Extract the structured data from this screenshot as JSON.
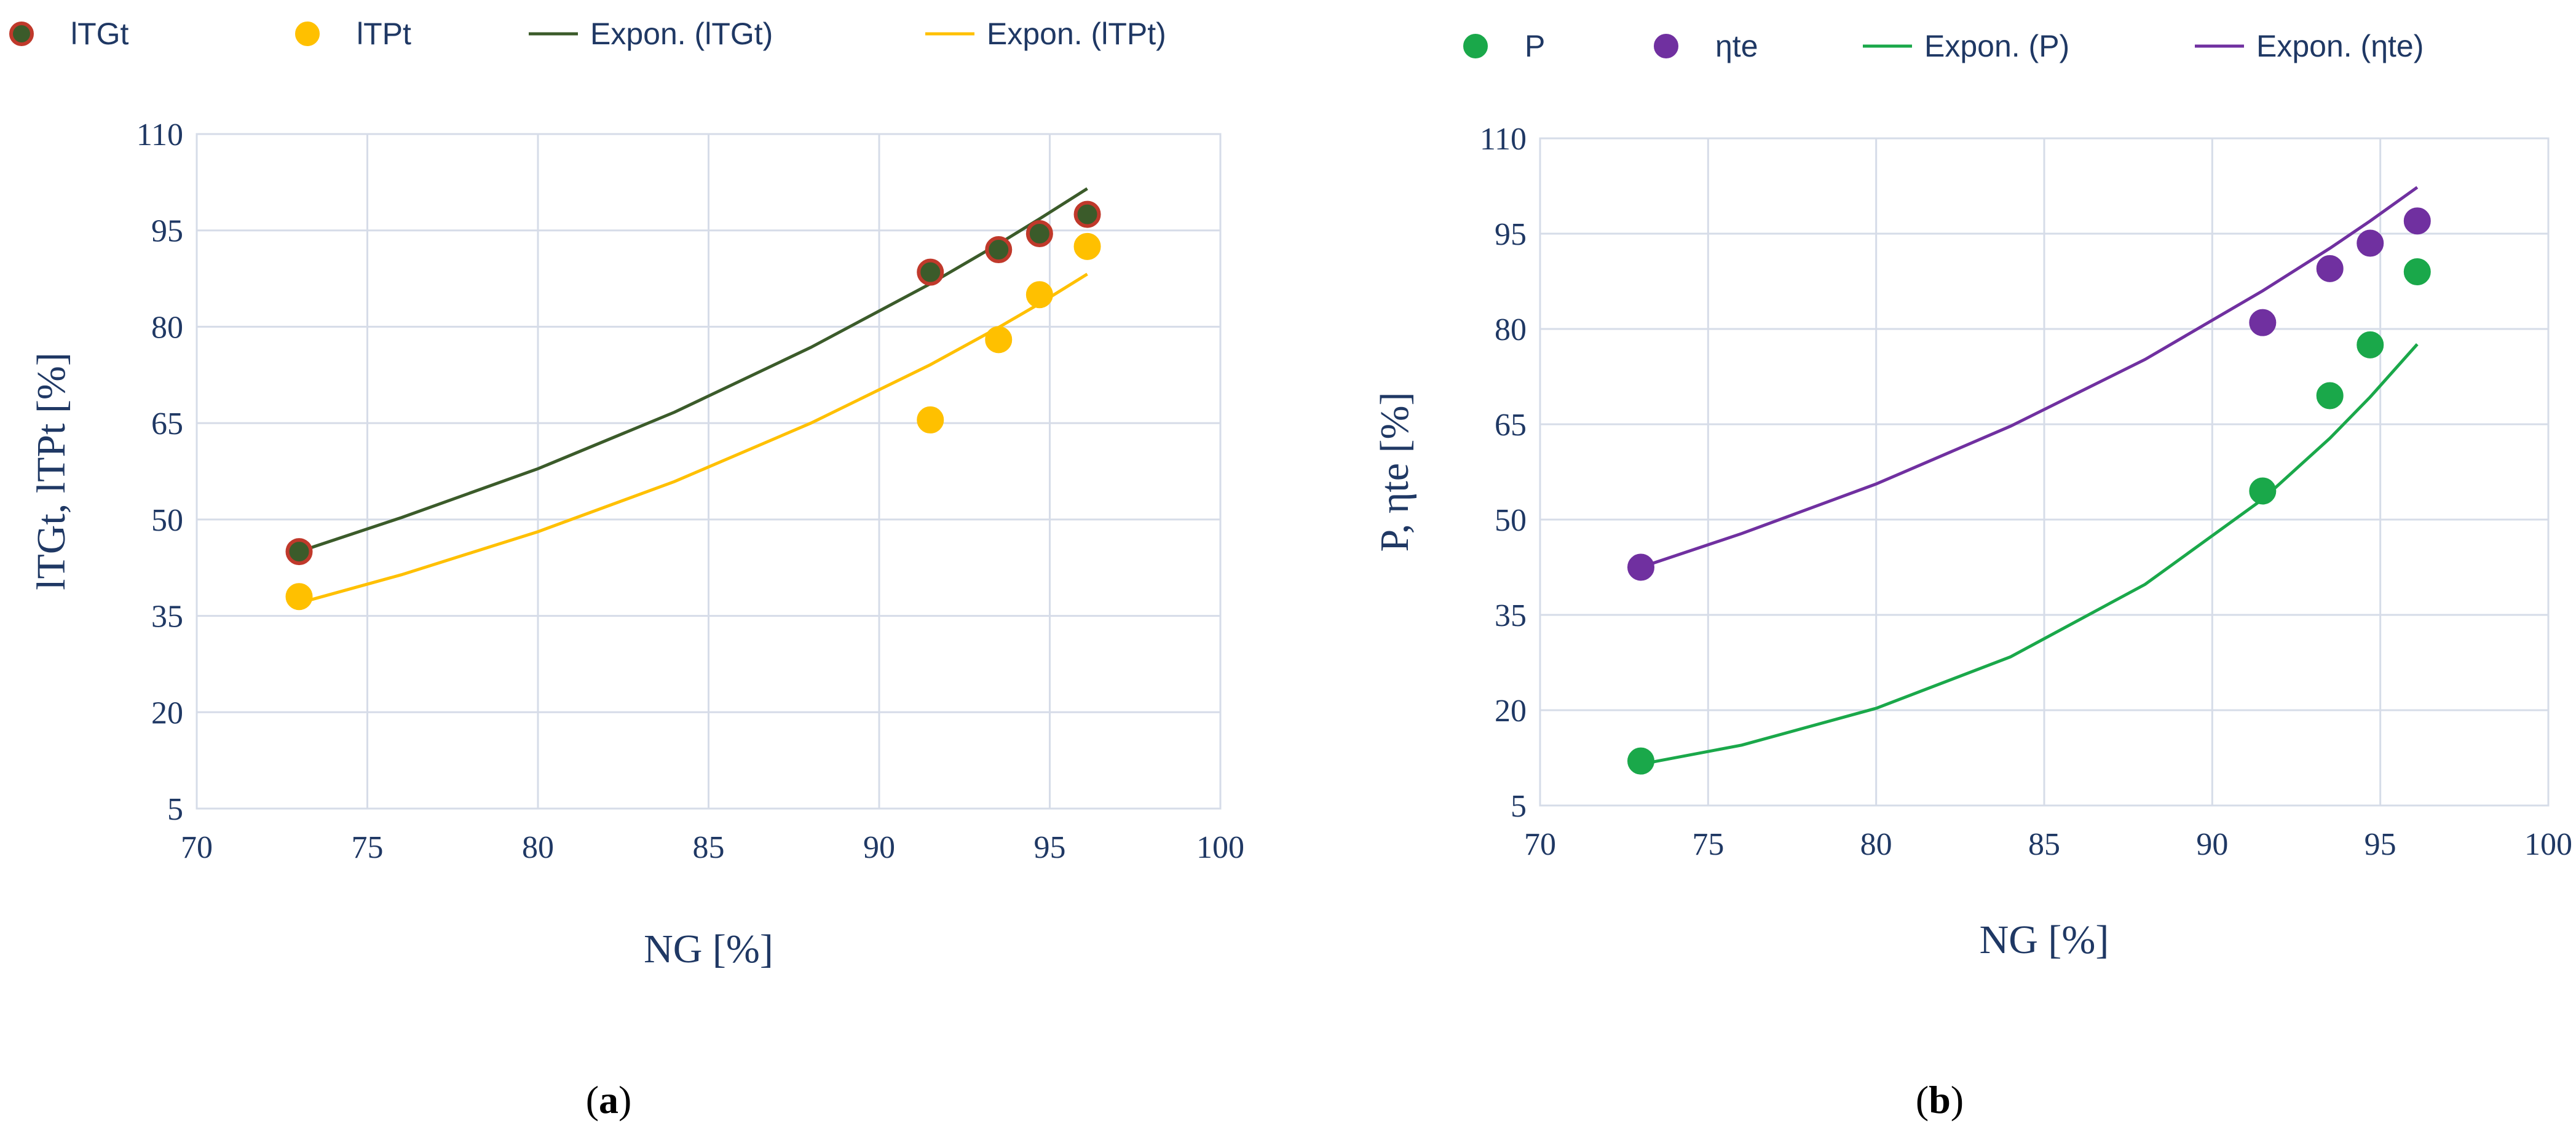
{
  "chart_data": [
    {
      "type": "scatter",
      "panel": "a",
      "caption_open": "(",
      "caption_letter": "a",
      "caption_close": ")",
      "xlabel": "NG [%]",
      "ylabel": "lTGt, lTPt [%]",
      "xlim": [
        70,
        100
      ],
      "ylim": [
        5,
        110
      ],
      "xticks": [
        70,
        75,
        80,
        85,
        90,
        95,
        100
      ],
      "yticks": [
        5,
        20,
        35,
        50,
        65,
        80,
        95,
        110
      ],
      "grid": true,
      "legend_position": "top",
      "series": [
        {
          "name": "lTGt",
          "kind": "scatter",
          "color": "#3b5b2a",
          "edge_color": "#c0392b",
          "x": [
            73,
            91.5,
            93.5,
            94.7,
            96.1
          ],
          "y": [
            45,
            88.5,
            92,
            94.5,
            97.5
          ]
        },
        {
          "name": "lTPt",
          "kind": "scatter",
          "color": "#ffc000",
          "edge_color": "#ffc000",
          "x": [
            73,
            91.5,
            93.5,
            94.7,
            96.1
          ],
          "y": [
            38,
            65.5,
            78,
            85,
            92.5
          ]
        },
        {
          "name": "Expon. (lTGt)",
          "kind": "trendline",
          "color": "#3b5b2a",
          "fit": "exponential",
          "x": [
            73,
            76,
            80,
            84,
            88,
            91.5,
            93.5,
            94.7,
            96.1
          ],
          "y": [
            45,
            50.3,
            57.9,
            66.7,
            76.8,
            86.7,
            92.9,
            96.8,
            101.5
          ]
        },
        {
          "name": "Expon. (lTPt)",
          "kind": "trendline",
          "color": "#ffc000",
          "fit": "exponential",
          "x": [
            73,
            76,
            80,
            84,
            88,
            91.5,
            93.5,
            94.7,
            96.1
          ],
          "y": [
            37,
            41.4,
            48.1,
            55.9,
            65.0,
            74.1,
            79.9,
            83.6,
            88.2
          ]
        }
      ]
    },
    {
      "type": "scatter",
      "panel": "b",
      "caption_open": "(",
      "caption_letter": "b",
      "caption_close": ")",
      "xlabel": "NG [%]",
      "ylabel": "P, ηte [%]",
      "xlim": [
        70,
        100
      ],
      "ylim": [
        5,
        110
      ],
      "xticks": [
        70,
        75,
        80,
        85,
        90,
        95,
        100
      ],
      "yticks": [
        5,
        20,
        35,
        50,
        65,
        80,
        95,
        110
      ],
      "grid": true,
      "legend_position": "top",
      "series": [
        {
          "name": "P",
          "kind": "scatter",
          "color": "#1aa84a",
          "edge_color": "#1aa84a",
          "x": [
            73,
            91.5,
            93.5,
            94.7,
            96.1
          ],
          "y": [
            12,
            54.5,
            69.5,
            77.5,
            89
          ]
        },
        {
          "name": "ηte",
          "kind": "scatter",
          "color": "#7030a0",
          "edge_color": "#7030a0",
          "x": [
            73,
            91.5,
            93.5,
            94.7,
            96.1
          ],
          "y": [
            42.5,
            81,
            89.5,
            93.5,
            97
          ]
        },
        {
          "name": "Expon. (P)",
          "kind": "trendline",
          "color": "#1aa84a",
          "fit": "exponential",
          "x": [
            73,
            76,
            80,
            84,
            88,
            91.5,
            93.5,
            94.7,
            96.1
          ],
          "y": [
            11.5,
            14.5,
            20.3,
            28.4,
            39.8,
            53.2,
            62.8,
            69.3,
            77.6
          ]
        },
        {
          "name": "Expon. (ηte)",
          "kind": "trendline",
          "color": "#7030a0",
          "fit": "exponential",
          "x": [
            73,
            76,
            80,
            84,
            88,
            91.5,
            93.5,
            94.7,
            96.1
          ],
          "y": [
            42.5,
            47.8,
            55.6,
            64.7,
            75.2,
            86.0,
            92.7,
            97.0,
            102.3
          ]
        }
      ]
    }
  ]
}
